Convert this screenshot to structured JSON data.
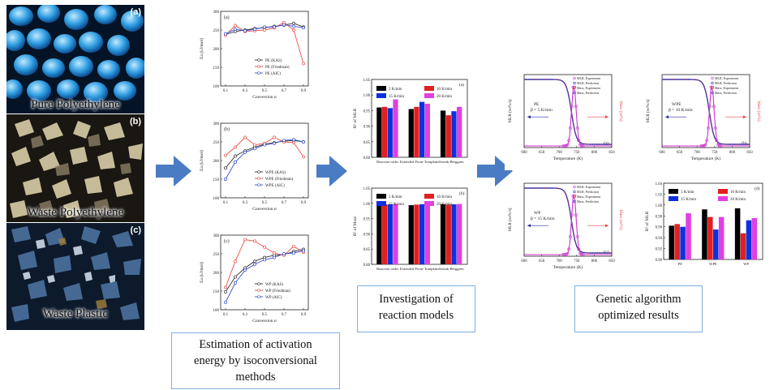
{
  "photos": [
    {
      "tag": "(a)",
      "caption": "Pure Polyethylene"
    },
    {
      "tag": "(b)",
      "caption": "Waste Polyethylene"
    },
    {
      "tag": "(c)",
      "caption": "Waste Plastic"
    }
  ],
  "captions": {
    "activation": [
      "Estimation of activation",
      "energy by isoconversional",
      "methods"
    ],
    "reaction": [
      "Investigation of",
      "reaction models"
    ],
    "genetic": [
      "Genetic algorithm",
      "optimized results"
    ]
  },
  "colors": {
    "arrow": "#4a7cc4",
    "kas": "#333333",
    "friedman": "#e8504a",
    "aic": "#3a4fd0",
    "bar_5": "#000000",
    "bar_10": "#e02020",
    "bar_15": "#1030e0",
    "bar_20": "#e040e0",
    "mlr_exp": "#cc33cc",
    "mass": "#e84848",
    "pred": "#2a2aaa"
  },
  "chart_data": [
    {
      "type": "line",
      "panel": "(a)",
      "x": [
        0.1,
        0.2,
        0.3,
        0.4,
        0.5,
        0.6,
        0.7,
        0.8,
        0.9
      ],
      "ylabel": "Ea (kJ/mol)",
      "xlabel": "Conversion α",
      "ylim": [
        100,
        300
      ],
      "yticks": [
        100,
        150,
        200,
        250,
        300
      ],
      "xticks": [
        "0.1",
        "0.3",
        "0.5",
        "0.7",
        "0.9"
      ],
      "series": [
        {
          "name": "PE (KAS)",
          "values": [
            238,
            246,
            250,
            254,
            256,
            260,
            263,
            268,
            258
          ]
        },
        {
          "name": "PE (Friedman)",
          "values": [
            236,
            262,
            246,
            248,
            250,
            256,
            270,
            250,
            160
          ]
        },
        {
          "name": "PE (AIC)",
          "values": [
            240,
            252,
            248,
            252,
            258,
            258,
            264,
            260,
            256
          ]
        }
      ]
    },
    {
      "type": "line",
      "panel": "(b)",
      "x": [
        0.1,
        0.2,
        0.3,
        0.4,
        0.5,
        0.6,
        0.7,
        0.8,
        0.9
      ],
      "ylabel": "Ea (kJ/mol)",
      "xlabel": "Conversion α",
      "ylim": [
        100,
        300
      ],
      "yticks": [
        100,
        150,
        200,
        250,
        300
      ],
      "xticks": [
        "0.1",
        "0.3",
        "0.5",
        "0.7",
        "0.9"
      ],
      "series": [
        {
          "name": "WPE (KAS)",
          "values": [
            180,
            212,
            226,
            236,
            244,
            248,
            252,
            254,
            250
          ]
        },
        {
          "name": "WPE (Friedman)",
          "values": [
            214,
            236,
            262,
            242,
            246,
            262,
            250,
            248,
            210
          ]
        },
        {
          "name": "WPE (AIC)",
          "values": [
            150,
            196,
            222,
            232,
            242,
            246,
            254,
            256,
            250
          ]
        }
      ]
    },
    {
      "type": "line",
      "panel": "(c)",
      "x": [
        0.1,
        0.2,
        0.3,
        0.4,
        0.5,
        0.6,
        0.7,
        0.8,
        0.9
      ],
      "ylabel": "Ea (kJ/mol)",
      "xlabel": "Conversion α",
      "ylim": [
        100,
        300
      ],
      "yticks": [
        100,
        150,
        200,
        250,
        300
      ],
      "xticks": [
        "0.1",
        "0.3",
        "0.5",
        "0.7",
        "0.9"
      ],
      "series": [
        {
          "name": "WP (KAS)",
          "values": [
            148,
            188,
            212,
            230,
            240,
            246,
            248,
            256,
            262
          ]
        },
        {
          "name": "WP (Friedman)",
          "values": [
            160,
            230,
            288,
            284,
            268,
            252,
            246,
            270,
            254
          ]
        },
        {
          "name": "WP (AIC)",
          "values": [
            120,
            172,
            206,
            222,
            234,
            240,
            250,
            252,
            258
          ]
        }
      ]
    },
    {
      "type": "bar",
      "panel": "(a)",
      "categories": [
        "Reaction order",
        "Extended Prout-Tompkins",
        "Sestak-Berggren"
      ],
      "ylabel": "R² of MLR",
      "ylim": [
        0.8,
        1.05
      ],
      "yticks": [
        "0.80",
        "0.85",
        "0.90",
        "0.95",
        "1.00",
        "1.05"
      ],
      "series": [
        {
          "name": "5 K/min",
          "values": [
            0.96,
            0.955,
            0.95
          ]
        },
        {
          "name": "10 K/min",
          "values": [
            0.962,
            0.962,
            0.935
          ]
        },
        {
          "name": "15 K/min",
          "values": [
            0.958,
            0.978,
            0.948
          ]
        },
        {
          "name": "20 K/min",
          "values": [
            0.986,
            0.972,
            0.962
          ]
        }
      ]
    },
    {
      "type": "bar",
      "panel": "(b)",
      "categories": [
        "Reaction order",
        "Extended Prout-Tompkins",
        "Sestak-Berggren"
      ],
      "ylabel": "R² of Mass",
      "ylim": [
        0.8,
        1.05
      ],
      "yticks": [
        "0.80",
        "0.85",
        "0.90",
        "0.95",
        "1.00",
        "1.05"
      ],
      "series": [
        {
          "name": "5 K/min",
          "values": [
            0.996,
            0.994,
            0.997
          ]
        },
        {
          "name": "10 K/min",
          "values": [
            0.997,
            0.996,
            0.996
          ]
        },
        {
          "name": "15 K/min",
          "values": [
            0.997,
            0.997,
            0.997
          ]
        },
        {
          "name": "20 K/min",
          "values": [
            0.998,
            0.997,
            0.998
          ]
        }
      ]
    },
    {
      "type": "line",
      "panel": "(a)",
      "label": [
        "PE",
        "β = 5 K/min"
      ],
      "xlabel": "Temperature (K)",
      "ylabel": "MLR (wt%/s)",
      "ylabel2": "Mass (wt%)",
      "xticks": [
        "600",
        "650",
        "700",
        "750",
        "800",
        "850"
      ],
      "legend": [
        "MLR, Experiment",
        "MLR, Prediction",
        "Mass, Experiment",
        "Mass, Prediction"
      ]
    },
    {
      "type": "line",
      "panel": "(b)",
      "label": [
        "WPE",
        "β = 10 K/min"
      ],
      "xlabel": "Temperature (K)",
      "ylabel": "MLR (wt%/s)",
      "ylabel2": "Mass (wt%)",
      "xticks": [
        "600",
        "650",
        "700",
        "750",
        "800",
        "850"
      ],
      "legend": [
        "MLR, Experiment",
        "MLR, Prediction",
        "Mass, Experiment",
        "Mass, Prediction"
      ]
    },
    {
      "type": "line",
      "panel": "(c)",
      "label": [
        "WP",
        "β = 15 K/min"
      ],
      "xlabel": "Temperature (K)",
      "ylabel": "MLR (wt%/s)",
      "ylabel2": "Mass (wt%)",
      "xticks": [
        "600",
        "650",
        "700",
        "750",
        "800",
        "850"
      ],
      "legend": [
        "MLR, Experiment",
        "MLR, Prediction",
        "Mass, Experiment",
        "Mass, Prediction"
      ]
    },
    {
      "type": "bar",
      "panel": "(d)",
      "categories": [
        "PE",
        "WPE",
        "WP"
      ],
      "ylabel": "R² of MLR",
      "ylim": [
        0.9,
        1.04
      ],
      "yticks": [
        "0.90",
        "0.92",
        "0.94",
        "0.96",
        "0.98",
        "1.00",
        "1.02",
        "1.04"
      ],
      "series": [
        {
          "name": "5 K/min",
          "values": [
            0.962,
            0.992,
            0.994
          ]
        },
        {
          "name": "10 K/min",
          "values": [
            0.965,
            0.978,
            0.948
          ]
        },
        {
          "name": "15 K/min",
          "values": [
            0.96,
            0.955,
            0.972
          ]
        },
        {
          "name": "20 K/min",
          "values": [
            0.985,
            0.978,
            0.976
          ]
        }
      ]
    }
  ]
}
